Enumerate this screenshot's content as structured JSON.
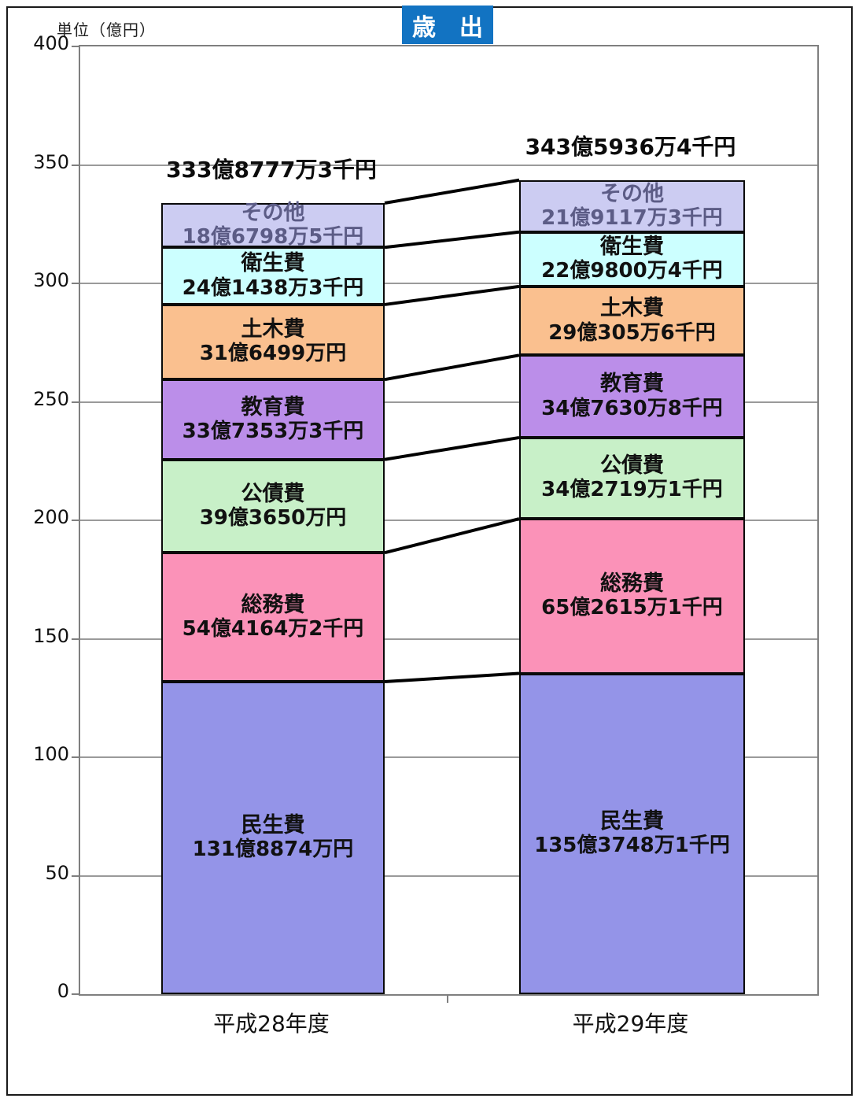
{
  "title": "歳　出",
  "unit_label": "単位（億円）",
  "colors": {
    "title_bg": "#1273c2",
    "title_text": "#ffffff",
    "grid": "#9a9a9a",
    "axis": "#7f7f7f",
    "connector": "#000000",
    "segment_border": "#0a0a0a",
    "default_text": "#111111"
  },
  "chart_data": {
    "type": "bar",
    "stacked": true,
    "title": "歳出",
    "unit": "億円",
    "ylabel": "単位（億円）",
    "ylim": [
      0,
      400
    ],
    "yticks": [
      0,
      50,
      100,
      150,
      200,
      250,
      300,
      350,
      400
    ],
    "grid": true,
    "categories": [
      "平成28年度",
      "平成29年度"
    ],
    "totals": [
      {
        "value": 333.87773,
        "label": "333億8777万3千円"
      },
      {
        "value": 343.59364,
        "label": "343億5936万4千円"
      }
    ],
    "series": [
      {
        "name": "民生費",
        "color": "#9494e8",
        "values": [
          131.8874,
          135.37481
        ],
        "value_labels": [
          "131億8874万円",
          "135億3748万1千円"
        ]
      },
      {
        "name": "総務費",
        "color": "#fb92b8",
        "values": [
          54.41642,
          65.26151
        ],
        "value_labels": [
          "54億4164万2千円",
          "65億2615万1千円"
        ]
      },
      {
        "name": "公債費",
        "color": "#c8f0c8",
        "values": [
          39.365,
          34.27191
        ],
        "value_labels": [
          "39億3650万円",
          "34億2719万1千円"
        ]
      },
      {
        "name": "教育費",
        "color": "#bb8ee9",
        "values": [
          33.73533,
          34.76308
        ],
        "value_labels": [
          "33億7353万3千円",
          "34億7630万8千円"
        ]
      },
      {
        "name": "土木費",
        "color": "#fac08f",
        "values": [
          31.6499,
          29.03056
        ],
        "value_labels": [
          "31億6499万円",
          "29億305万6千円"
        ]
      },
      {
        "name": "衛生費",
        "color": "#ccffff",
        "values": [
          24.14383,
          22.98004
        ],
        "value_labels": [
          "24億1438万3千円",
          "22億9800万4千円"
        ]
      },
      {
        "name": "その他",
        "color": "#ccccf2",
        "values": [
          18.67985,
          21.91173
        ],
        "value_labels": [
          "18億6798万5千円",
          "21億9117万3千円"
        ],
        "text_color": "#5c5c86"
      }
    ]
  }
}
